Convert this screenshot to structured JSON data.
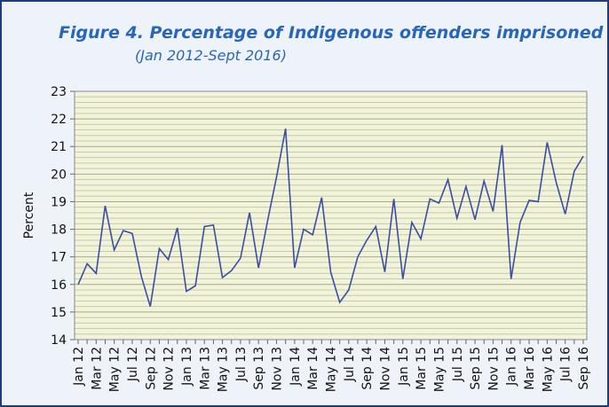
{
  "chart_data": {
    "type": "line",
    "title": "Figure 4. Percentage of Indigenous offenders imprisoned",
    "subtitle": "(Jan  2012-Sept 2016)",
    "y_label": "Percent",
    "categories": [
      "Jan 12",
      null,
      "Mar 12",
      null,
      "May 12",
      null,
      "Jul 12",
      null,
      "Sep 12",
      null,
      "Nov 12",
      null,
      "Jan 13",
      null,
      "Mar 13",
      null,
      "May 13",
      null,
      "Jul 13",
      null,
      "Sep 13",
      null,
      "Nov 13",
      null,
      "Jan 14",
      null,
      "Mar 14",
      null,
      "May 14",
      null,
      "Jul 14",
      null,
      "Sep 14",
      null,
      "Nov 14",
      null,
      "Jan 15",
      null,
      "Mar 15",
      null,
      "May 15",
      null,
      "Jul 15",
      null,
      "Sep 15",
      null,
      "Nov 15",
      null,
      "Jan 16",
      null,
      "Mar 16",
      null,
      "May 16",
      null,
      "Jul 16",
      null,
      "Sep 16"
    ],
    "values": [
      16.0,
      16.75,
      16.4,
      18.85,
      17.25,
      17.95,
      17.85,
      16.3,
      15.2,
      17.3,
      16.9,
      18.05,
      15.75,
      15.95,
      18.1,
      18.15,
      16.25,
      16.5,
      16.95,
      18.6,
      16.6,
      18.3,
      19.9,
      21.65,
      16.6,
      18.0,
      17.8,
      19.15,
      16.45,
      15.35,
      15.8,
      17.0,
      17.6,
      18.1,
      16.45,
      19.1,
      16.2,
      18.25,
      17.65,
      19.1,
      18.95,
      19.8,
      18.4,
      19.55,
      18.35,
      19.75,
      18.65,
      21.05,
      16.2,
      18.25,
      19.05,
      19.0,
      21.15,
      19.7,
      18.55,
      20.1,
      20.65
    ],
    "color": "#3b4ea3",
    "ylim": [
      14,
      23
    ],
    "yticks": [
      14,
      15,
      16,
      17,
      18,
      19,
      20,
      21,
      22,
      23
    ],
    "minor_yticks": [
      14.2,
      14.4,
      14.6,
      14.8,
      15.2,
      15.4,
      15.6,
      15.8,
      16.2,
      16.4,
      16.6,
      16.8,
      17.2,
      17.4,
      17.6,
      17.8,
      18.2,
      18.4,
      18.6,
      18.8,
      19.2,
      19.4,
      19.6,
      19.8,
      20.2,
      20.4,
      20.6,
      20.8,
      21.2,
      21.4,
      21.6,
      21.8,
      22.2,
      22.4,
      22.6,
      22.8
    ],
    "grid": true
  }
}
